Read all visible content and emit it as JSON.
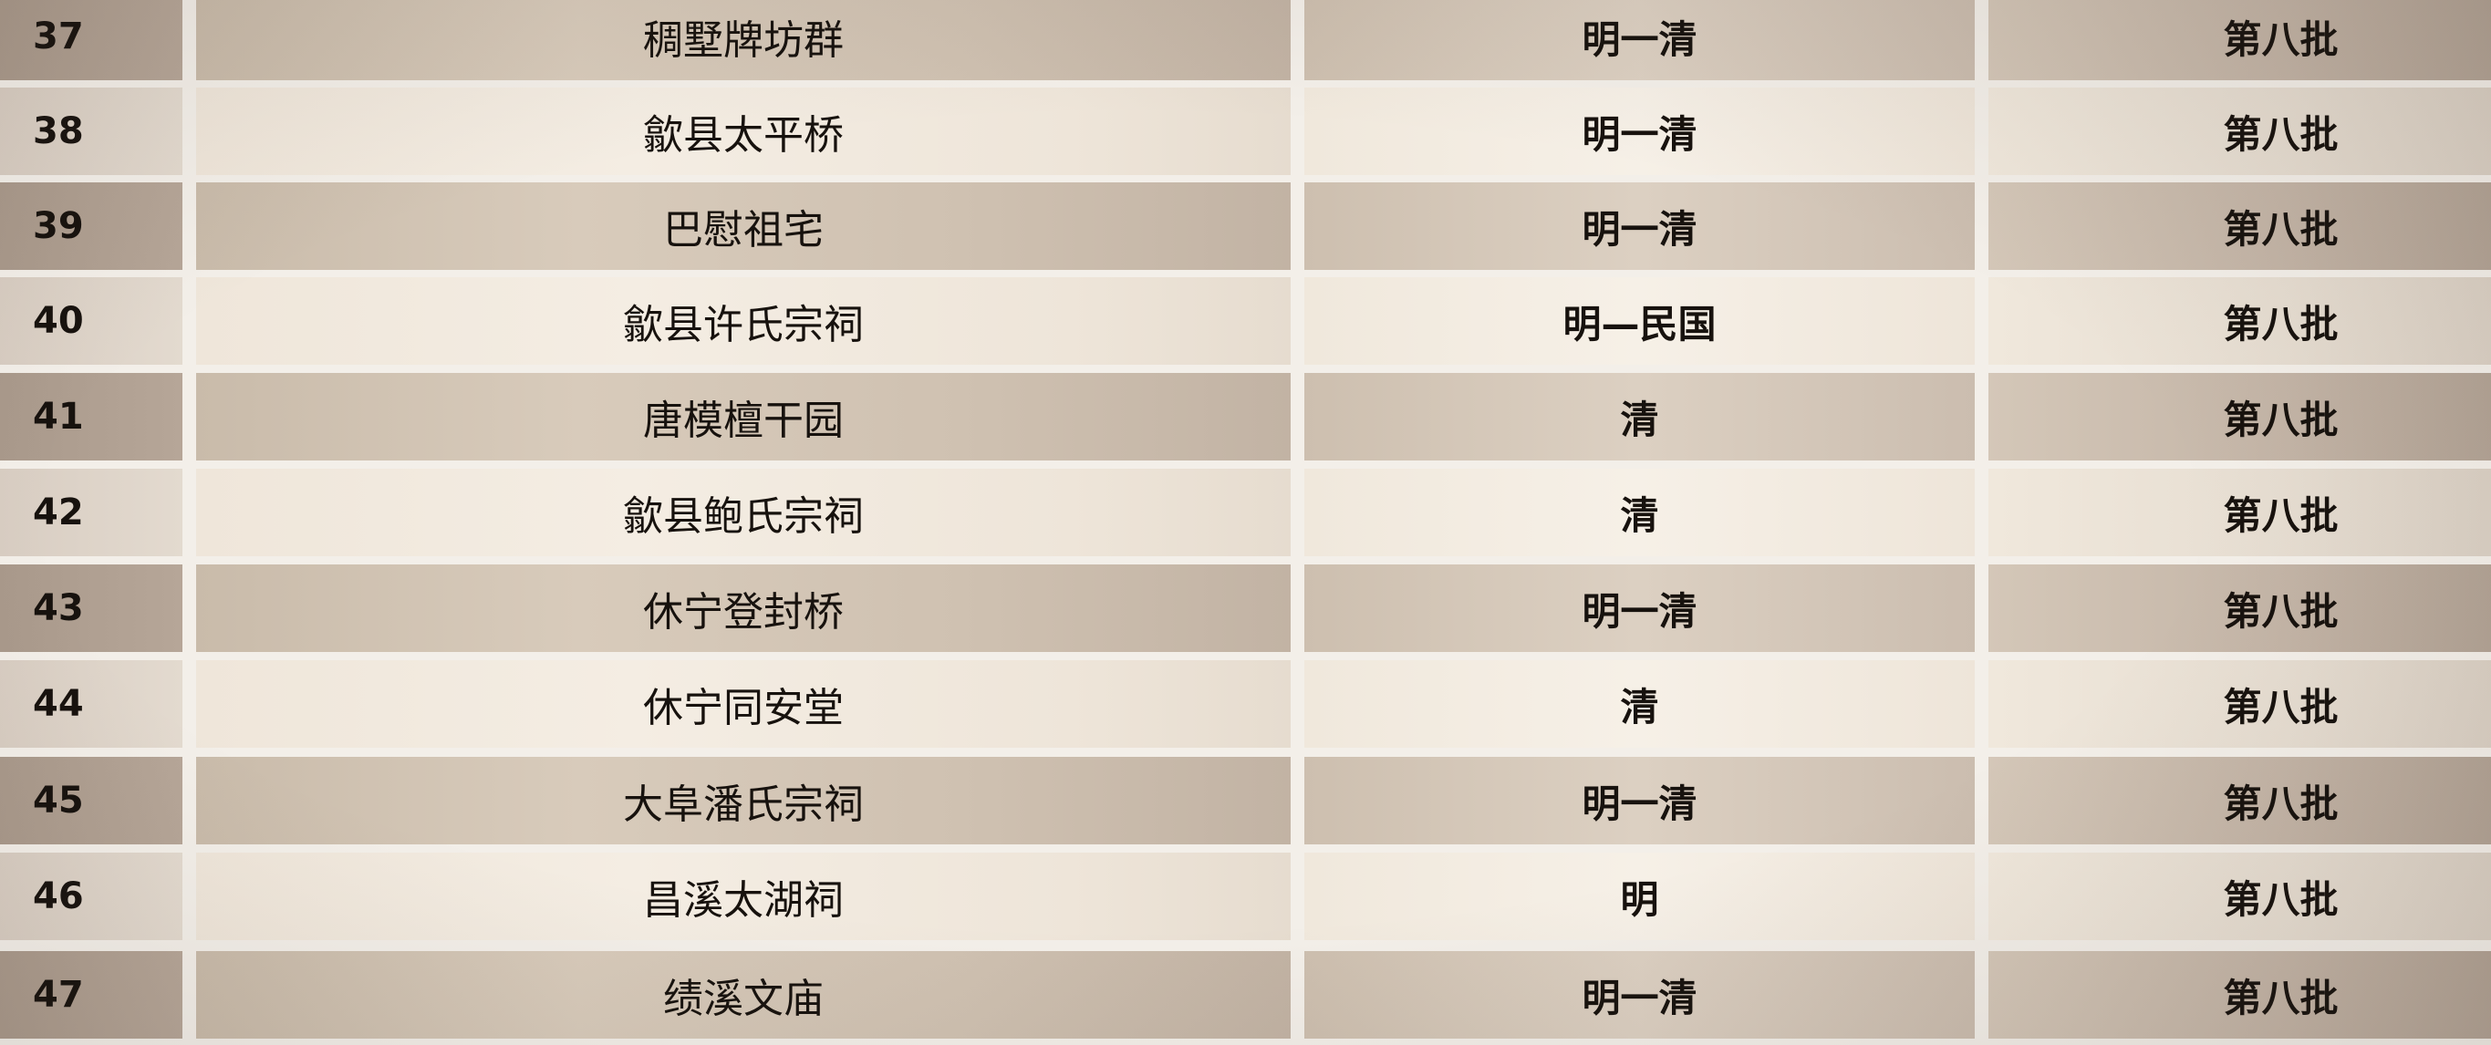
{
  "table": {
    "rows": [
      {
        "num": "37",
        "name": "稠墅牌坊群",
        "era": "明一清",
        "batch": "第八批"
      },
      {
        "num": "38",
        "name": "歙县太平桥",
        "era": "明一清",
        "batch": "第八批"
      },
      {
        "num": "39",
        "name": "巴慰祖宅",
        "era": "明一清",
        "batch": "第八批"
      },
      {
        "num": "40",
        "name": "歙县许氏宗祠",
        "era": "明—民国",
        "batch": "第八批"
      },
      {
        "num": "41",
        "name": "唐模檀干园",
        "era": "清",
        "batch": "第八批"
      },
      {
        "num": "42",
        "name": "歙县鲍氏宗祠",
        "era": "清",
        "batch": "第八批"
      },
      {
        "num": "43",
        "name": "休宁登封桥",
        "era": "明一清",
        "batch": "第八批"
      },
      {
        "num": "44",
        "name": "休宁同安堂",
        "era": "清",
        "batch": "第八批"
      },
      {
        "num": "45",
        "name": "大阜潘氏宗祠",
        "era": "明一清",
        "batch": "第八批"
      },
      {
        "num": "46",
        "name": "昌溪太湖祠",
        "era": "明",
        "batch": "第八批"
      },
      {
        "num": "47",
        "name": "绩溪文庙",
        "era": "明一清",
        "batch": "第八批"
      }
    ]
  }
}
